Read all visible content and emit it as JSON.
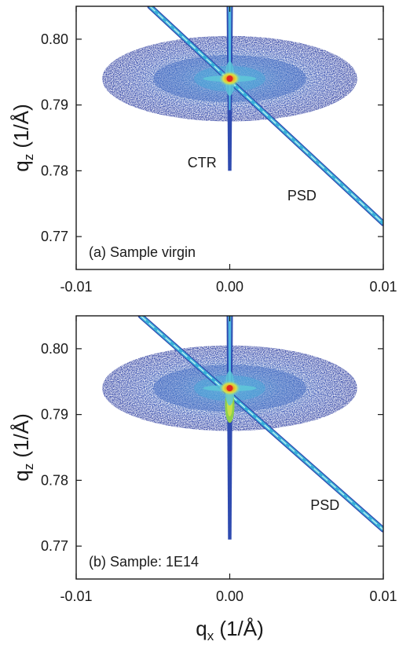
{
  "chart_data": [
    {
      "type": "heatmap",
      "panel_label": "(a) Sample virgin",
      "xlabel": "",
      "ylabel_main": "q",
      "ylabel_sub": "z",
      "ylabel_unit": " (1/Å)",
      "xlim": [
        -0.01,
        0.01
      ],
      "ylim": [
        0.765,
        0.805
      ],
      "x_ticks": [
        -0.01,
        0.0,
        0.01
      ],
      "x_tick_labels": [
        "-0.01",
        "0.00",
        "0.01"
      ],
      "y_ticks": [
        0.77,
        0.78,
        0.79,
        0.8
      ],
      "y_tick_labels": [
        "0.77",
        "0.78",
        "0.79",
        "0.80"
      ],
      "peak": {
        "qx": 0.0,
        "qz": 0.794
      },
      "diffuse_ellipse": {
        "qx_halfwidth": 0.0083,
        "qz_halfwidth": 0.0065
      },
      "ctr": {
        "qx": 0.0,
        "qz_min": 0.78,
        "qz_max": 0.805
      },
      "psd": {
        "start": [
          -0.0052,
          0.805
        ],
        "end": [
          0.01,
          0.772
        ]
      },
      "annotations": [
        {
          "text": "CTR",
          "qx": -0.0018,
          "qz": 0.7805
        },
        {
          "text": "PSD",
          "qx": 0.0047,
          "qz": 0.7755
        }
      ],
      "colors": {
        "low": "#2f3fa6",
        "mid": "#2b9cc9",
        "high": "#d8e04a",
        "peak": "#e02820"
      }
    },
    {
      "type": "heatmap",
      "panel_label": "(b) Sample: 1E14",
      "xlabel_main": "q",
      "xlabel_sub": "x",
      "xlabel_unit": " (1/Å)",
      "ylabel_main": "q",
      "ylabel_sub": "z",
      "ylabel_unit": " (1/Å)",
      "xlim": [
        -0.01,
        0.01
      ],
      "ylim": [
        0.765,
        0.805
      ],
      "x_ticks": [
        -0.01,
        0.0,
        0.01
      ],
      "x_tick_labels": [
        "-0.01",
        "0.00",
        "0.01"
      ],
      "y_ticks": [
        0.77,
        0.78,
        0.79,
        0.8
      ],
      "y_tick_labels": [
        "0.77",
        "0.78",
        "0.79",
        "0.80"
      ],
      "peak": {
        "qx": 0.0,
        "qz": 0.794
      },
      "diffuse_ellipse": {
        "qx_halfwidth": 0.0083,
        "qz_halfwidth": 0.0065
      },
      "ctr": {
        "qx": 0.0,
        "qz_min": 0.771,
        "qz_max": 0.805
      },
      "psd": {
        "start": [
          -0.0058,
          0.805
        ],
        "end": [
          0.01,
          0.7725
        ]
      },
      "annotations": [
        {
          "text": "PSD",
          "qx": 0.0062,
          "qz": 0.7755
        }
      ],
      "colors": {
        "low": "#2f3fa6",
        "mid": "#2b9cc9",
        "high": "#c8e04a",
        "peak": "#e02820"
      }
    }
  ]
}
